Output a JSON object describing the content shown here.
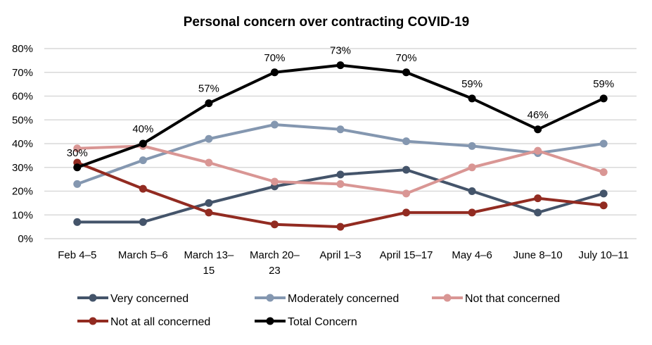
{
  "chart_data": {
    "type": "line",
    "title": "Personal concern over contracting COVID-19",
    "xlabel": "",
    "ylabel": "",
    "ylim": [
      0,
      80
    ],
    "yticks": [
      "0%",
      "10%",
      "20%",
      "30%",
      "40%",
      "50%",
      "60%",
      "70%",
      "80%"
    ],
    "ytick_values": [
      0,
      10,
      20,
      30,
      40,
      50,
      60,
      70,
      80
    ],
    "grid": true,
    "legend_position": "bottom",
    "categories": [
      [
        "Feb 4–5"
      ],
      [
        "March 5–6"
      ],
      [
        "March 13–",
        "15"
      ],
      [
        "March 20–",
        "23"
      ],
      [
        "April 1–3"
      ],
      [
        "April 15–17"
      ],
      [
        "May 4–6"
      ],
      [
        "June 8–10"
      ],
      [
        "July 10–11"
      ]
    ],
    "series": [
      {
        "name": "Very concerned",
        "color": "#44546a",
        "values": [
          7,
          7,
          15,
          22,
          27,
          29,
          20,
          11,
          19
        ],
        "labels": false
      },
      {
        "name": "Moderately concerned",
        "color": "#8497b0",
        "values": [
          23,
          33,
          42,
          48,
          46,
          41,
          39,
          36,
          40
        ],
        "labels": false
      },
      {
        "name": "Not that concerned",
        "color": "#d99694",
        "values": [
          38,
          39,
          32,
          24,
          23,
          19,
          30,
          37,
          28
        ],
        "labels": false
      },
      {
        "name": "Not at all concerned",
        "color": "#922b21",
        "values": [
          32,
          21,
          11,
          6,
          5,
          11,
          11,
          17,
          14
        ],
        "labels": false
      },
      {
        "name": "Total Concern",
        "color": "#000000",
        "values": [
          30,
          40,
          57,
          70,
          73,
          70,
          59,
          46,
          59
        ],
        "labels": true,
        "data_labels": [
          "30%",
          "40%",
          "57%",
          "70%",
          "73%",
          "70%",
          "59%",
          "46%",
          "59%"
        ]
      }
    ]
  }
}
